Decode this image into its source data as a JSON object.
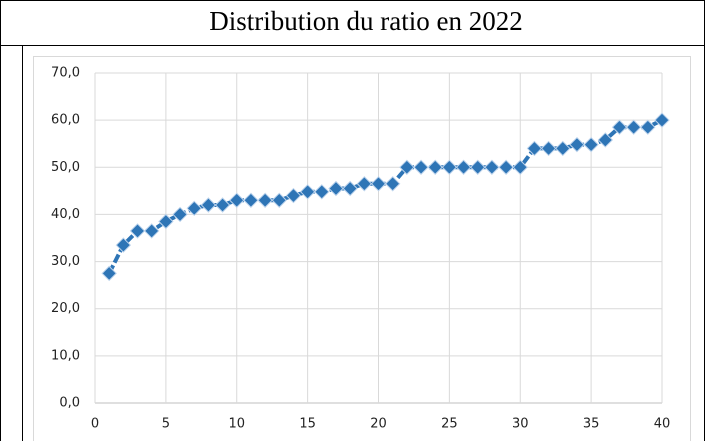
{
  "chart_data": {
    "type": "line",
    "title": "Distribution du ratio en 2022",
    "x": [
      1,
      2,
      3,
      4,
      5,
      6,
      7,
      8,
      9,
      10,
      11,
      12,
      13,
      14,
      15,
      16,
      17,
      18,
      19,
      20,
      21,
      22,
      23,
      24,
      25,
      26,
      27,
      28,
      29,
      30,
      31,
      32,
      33,
      34,
      35,
      36,
      37,
      38,
      39,
      40
    ],
    "values": [
      27.5,
      33.5,
      36.5,
      36.5,
      38.5,
      40,
      41.3,
      42,
      42,
      43,
      43,
      43,
      43,
      44,
      44.8,
      44.8,
      45.5,
      45.5,
      46.5,
      46.5,
      46.5,
      50,
      50,
      50,
      50,
      50,
      50,
      50,
      50,
      50,
      54,
      54,
      54,
      54.8,
      54.8,
      55.8,
      58.5,
      58.5,
      58.5,
      60
    ],
    "color": "#2e75b6",
    "xlim": [
      0,
      40
    ],
    "xticks": [
      0,
      5,
      10,
      15,
      20,
      25,
      30,
      35,
      40
    ],
    "ylim": [
      0,
      70
    ],
    "yticks": [
      {
        "value": 0,
        "label": "0,0"
      },
      {
        "value": 10,
        "label": "10,0"
      },
      {
        "value": 20,
        "label": "20,0"
      },
      {
        "value": 30,
        "label": "30,0"
      },
      {
        "value": 40,
        "label": "40,0"
      },
      {
        "value": 50,
        "label": "50,0"
      },
      {
        "value": 60,
        "label": "60,0"
      },
      {
        "value": 70,
        "label": "70,0"
      }
    ],
    "grid": true
  }
}
